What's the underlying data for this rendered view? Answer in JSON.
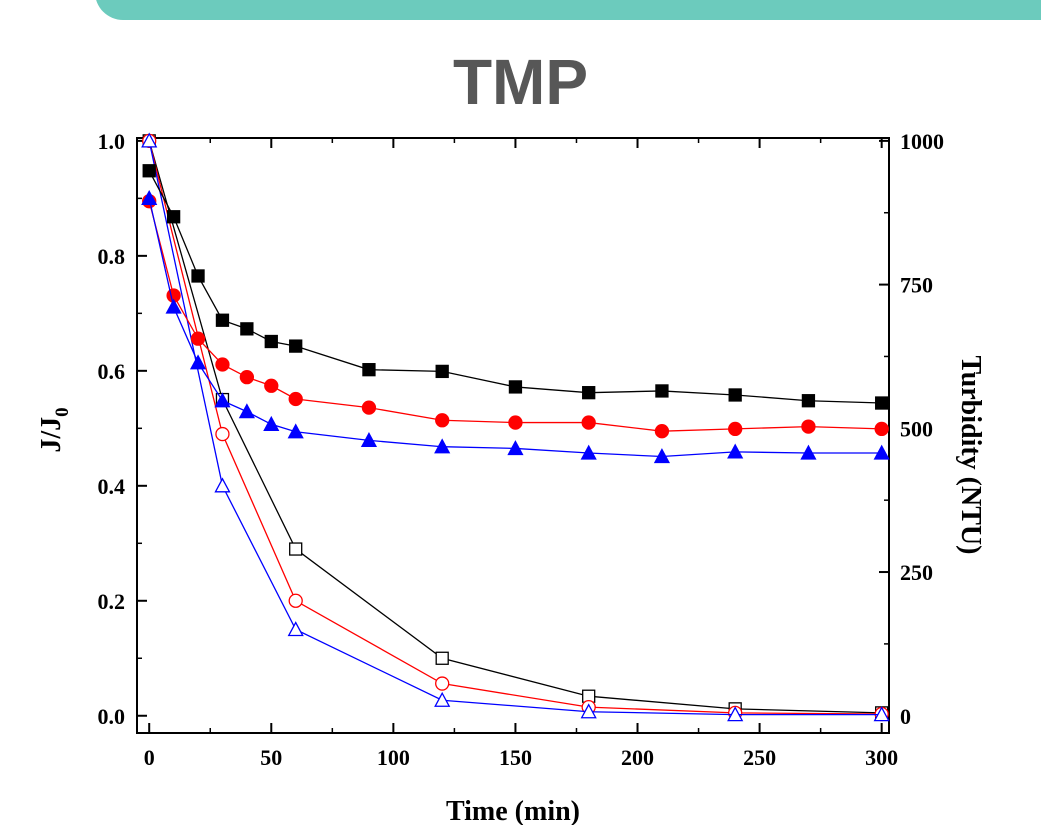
{
  "banner": {
    "color": "#6ccbbd"
  },
  "chart_data": {
    "type": "line",
    "title": "TMP",
    "xlabel": "Time (min)",
    "ylabel": "J/J",
    "ylabel_subscript": "0",
    "y2label": "Turbidity (NTU)",
    "xlim": [
      -5,
      303
    ],
    "ylim": [
      -0.03,
      1.005
    ],
    "y2lim": [
      -30,
      1005
    ],
    "xticks": [
      0,
      50,
      100,
      150,
      200,
      250,
      300
    ],
    "yticks": [
      0.0,
      0.2,
      0.4,
      0.6,
      0.8,
      1.0
    ],
    "ytick_labels": [
      "0.0",
      "0.2",
      "0.4",
      "0.6",
      "0.8",
      "1.0"
    ],
    "y2ticks": [
      0,
      250,
      500,
      750,
      1000
    ],
    "y2tick_labels": [
      "0",
      "250",
      "500",
      "750",
      "1000"
    ],
    "grid": false,
    "series": [
      {
        "axis": "y",
        "marker": "square",
        "filled": true,
        "color": "#000000",
        "x": [
          0,
          10,
          20,
          30,
          40,
          50,
          60,
          90,
          120,
          150,
          180,
          210,
          240,
          270,
          300
        ],
        "y": [
          0.948,
          0.868,
          0.765,
          0.688,
          0.673,
          0.651,
          0.643,
          0.602,
          0.599,
          0.572,
          0.562,
          0.565,
          0.558,
          0.548,
          0.544
        ]
      },
      {
        "axis": "y",
        "marker": "circle",
        "filled": true,
        "color": "#ff0000",
        "x": [
          0,
          10,
          20,
          30,
          40,
          50,
          60,
          90,
          120,
          150,
          180,
          210,
          240,
          270,
          300
        ],
        "y": [
          0.895,
          0.731,
          0.656,
          0.611,
          0.589,
          0.574,
          0.551,
          0.536,
          0.514,
          0.51,
          0.51,
          0.495,
          0.499,
          0.503,
          0.499
        ]
      },
      {
        "axis": "y",
        "marker": "triangle",
        "filled": true,
        "color": "#0000ff",
        "x": [
          0,
          10,
          20,
          30,
          40,
          50,
          60,
          90,
          120,
          150,
          180,
          210,
          240,
          270,
          300
        ],
        "y": [
          0.9,
          0.711,
          0.614,
          0.548,
          0.529,
          0.507,
          0.494,
          0.479,
          0.468,
          0.465,
          0.457,
          0.451,
          0.459,
          0.457,
          0.457
        ]
      },
      {
        "axis": "y2",
        "marker": "square",
        "filled": false,
        "color": "#000000",
        "x": [
          0,
          30,
          60,
          120,
          180,
          240,
          300
        ],
        "y": [
          1000,
          550,
          290,
          100,
          34,
          12,
          5
        ]
      },
      {
        "axis": "y2",
        "marker": "circle",
        "filled": false,
        "color": "#ff0000",
        "x": [
          0,
          30,
          60,
          120,
          180,
          240,
          300
        ],
        "y": [
          1000,
          490,
          200,
          56,
          15,
          5,
          3
        ]
      },
      {
        "axis": "y2",
        "marker": "triangle",
        "filled": false,
        "color": "#0000ff",
        "x": [
          0,
          30,
          60,
          120,
          180,
          240,
          300
        ],
        "y": [
          1000,
          400,
          150,
          27,
          7,
          2,
          2
        ]
      }
    ]
  }
}
